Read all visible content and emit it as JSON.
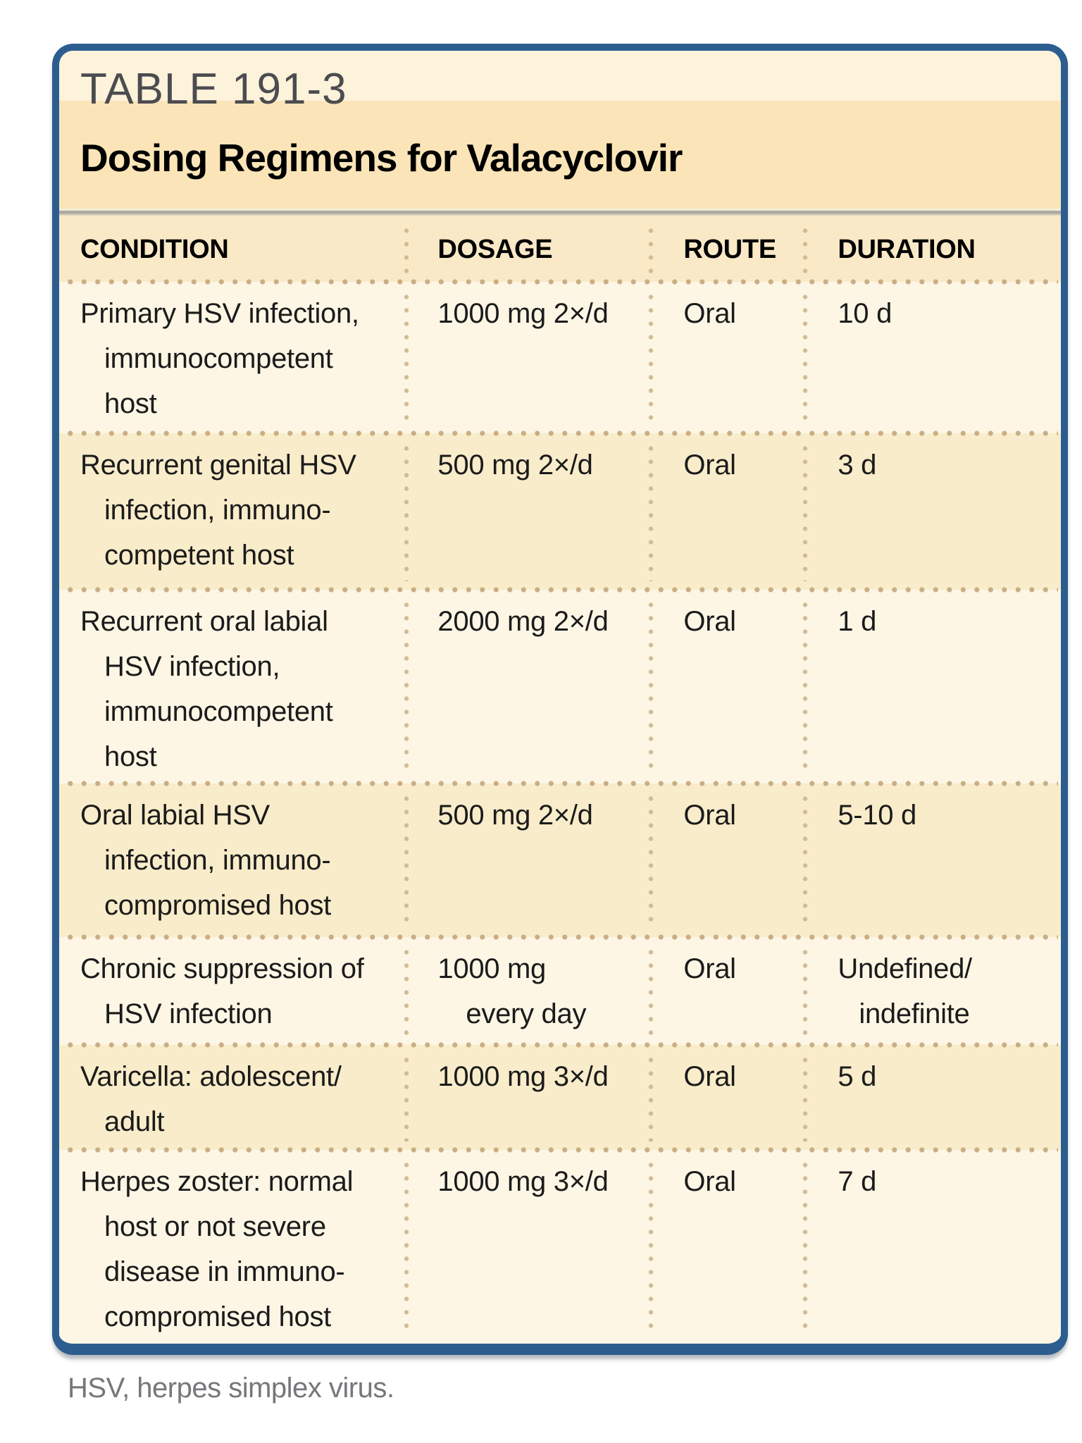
{
  "table": {
    "label": "TABLE 191-3",
    "title": "Dosing Regimens for Valacyclovir",
    "columns": [
      "CONDITION",
      "DOSAGE",
      "ROUTE",
      "DURATION"
    ],
    "rows": [
      {
        "condition": "Primary HSV infection,\nimmunocompetent\nhost",
        "dosage": "1000 mg 2×/d",
        "route": "Oral",
        "duration": "10 d"
      },
      {
        "condition": "Recurrent genital HSV\ninfection, immuno-\ncompetent host",
        "dosage": "500 mg 2×/d",
        "route": "Oral",
        "duration": "3 d"
      },
      {
        "condition": "Recurrent oral labial\nHSV infection,\nimmunocompetent\nhost",
        "dosage": "2000 mg 2×/d",
        "route": "Oral",
        "duration": "1 d"
      },
      {
        "condition": "Oral labial HSV\ninfection, immuno-\ncompromised host",
        "dosage": "500 mg 2×/d",
        "route": "Oral",
        "duration": "5-10 d"
      },
      {
        "condition": "Chronic suppression of\nHSV infection",
        "dosage": "1000 mg\nevery day",
        "route": "Oral",
        "duration": "Undefined/\nindefinite"
      },
      {
        "condition": "Varicella: adolescent/\nadult",
        "dosage": "1000 mg 3×/d",
        "route": "Oral",
        "duration": "5 d"
      },
      {
        "condition": "Herpes zoster: normal\nhost or not severe\ndisease in immuno-\ncompromised host",
        "dosage": "1000 mg 3×/d",
        "route": "Oral",
        "duration": "7 d"
      }
    ],
    "footnote": "HSV, herpes simplex virus."
  },
  "colors": {
    "border_blue": "#2c5d8f",
    "title_band_light": "#fdf2da",
    "title_band_tan": "#fbe5b8",
    "header_band": "#f9e9c7",
    "row_light": "#fdf6e5",
    "row_tan": "#f9ecca",
    "dot_tan": "#c9ae85",
    "body_text": "#1b1b1b",
    "label_gray": "#4b4c50",
    "footnote_gray": "#76777a"
  }
}
